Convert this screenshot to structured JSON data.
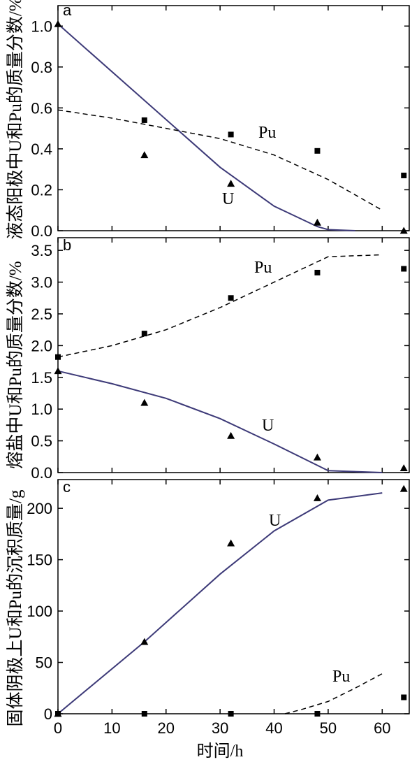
{
  "chart_data": [
    {
      "type": "line",
      "panel": "a",
      "ylabel": "液态阳极中U和Pu的质量分数/%",
      "xlim": [
        0,
        65
      ],
      "ylim": [
        0,
        1.1
      ],
      "yticks": [
        "0.0",
        "0.2",
        "0.4",
        "0.6",
        "0.8",
        "1.0"
      ],
      "series": [
        {
          "name": "U",
          "style": "solid",
          "line": {
            "x": [
              0,
              30,
              40,
              48,
              50,
              55
            ],
            "y": [
              1.01,
              0.31,
              0.12,
              0.02,
              0.005,
              0.0
            ]
          },
          "points": {
            "marker": "triangle",
            "x": [
              0,
              16,
              32,
              48,
              64
            ],
            "y": [
              1.01,
              0.37,
              0.23,
              0.04,
              0.0
            ]
          }
        },
        {
          "name": "Pu",
          "style": "dashed",
          "line": {
            "x": [
              0,
              10,
              20,
              30,
              40,
              50,
              60
            ],
            "y": [
              0.59,
              0.55,
              0.5,
              0.45,
              0.37,
              0.25,
              0.1
            ]
          },
          "points": {
            "marker": "square",
            "x": [
              16,
              32,
              48,
              64
            ],
            "y": [
              0.54,
              0.47,
              0.39,
              0.27
            ]
          }
        }
      ]
    },
    {
      "type": "line",
      "panel": "b",
      "ylabel": "熔盐中U和Pu的质量分数/%",
      "xlim": [
        0,
        65
      ],
      "ylim": [
        0,
        3.7
      ],
      "yticks": [
        "0.0",
        "0.5",
        "1.0",
        "1.5",
        "2.0",
        "2.5",
        "3.0",
        "3.5"
      ],
      "series": [
        {
          "name": "Pu",
          "style": "dashed",
          "line": {
            "x": [
              0,
              10,
              20,
              30,
              40,
              50,
              60
            ],
            "y": [
              1.82,
              2.0,
              2.25,
              2.6,
              3.0,
              3.4,
              3.43
            ]
          },
          "points": {
            "marker": "square",
            "x": [
              0,
              16,
              32,
              48,
              64
            ],
            "y": [
              1.82,
              2.19,
              2.75,
              3.15,
              3.21
            ]
          }
        },
        {
          "name": "U",
          "style": "solid",
          "line": {
            "x": [
              0,
              10,
              20,
              30,
              40,
              50,
              60
            ],
            "y": [
              1.6,
              1.4,
              1.17,
              0.85,
              0.45,
              0.03,
              0.0
            ]
          },
          "points": {
            "marker": "triangle",
            "x": [
              0,
              16,
              32,
              48,
              64
            ],
            "y": [
              1.6,
              1.1,
              0.58,
              0.24,
              0.07
            ]
          }
        }
      ]
    },
    {
      "type": "line",
      "panel": "c",
      "ylabel": "固体阴极上U和Pu的沉积质量/g",
      "xlabel": "时间/h",
      "xlim": [
        0,
        65
      ],
      "ylim": [
        0,
        228
      ],
      "xticks": [
        "0",
        "10",
        "20",
        "30",
        "40",
        "50",
        "60"
      ],
      "yticks": [
        "0",
        "50",
        "100",
        "150",
        "200"
      ],
      "series": [
        {
          "name": "U",
          "style": "solid",
          "line": {
            "x": [
              0,
              16,
              30,
              40,
              50,
              60
            ],
            "y": [
              0,
              70,
              136,
              178,
              208,
              215
            ]
          },
          "points": {
            "marker": "triangle",
            "x": [
              0,
              16,
              32,
              48,
              64
            ],
            "y": [
              0,
              70,
              166,
              210,
              219
            ]
          }
        },
        {
          "name": "Pu",
          "style": "dashed",
          "line": {
            "x": [
              42,
              45,
              50,
              55,
              60
            ],
            "y": [
              0,
              4,
              12,
              25,
              39
            ]
          },
          "points": {
            "marker": "square",
            "x": [
              0,
              16,
              32,
              48,
              64
            ],
            "y": [
              0,
              0,
              0,
              0,
              16
            ]
          }
        }
      ]
    }
  ]
}
